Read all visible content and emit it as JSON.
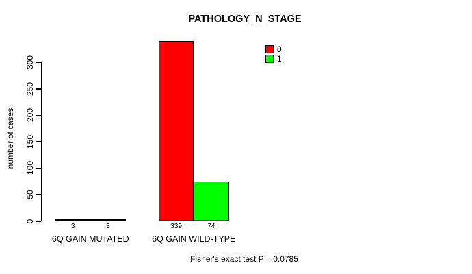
{
  "colors": {
    "background": "#FFFFFF",
    "axis": "#000000",
    "text": "#000000",
    "series0": "#FF0000",
    "series1": "#00FF00"
  },
  "chart_data": {
    "type": "bar",
    "title": "PATHOLOGY_N_STAGE",
    "xlabel": "",
    "ylabel": "number of cases",
    "categories": [
      "6Q GAIN MUTATED",
      "6Q GAIN WILD-TYPE"
    ],
    "series": [
      {
        "name": "0",
        "color": "#FF0000",
        "values": [
          3,
          339
        ]
      },
      {
        "name": "1",
        "color": "#00FF00",
        "values": [
          3,
          74
        ]
      }
    ],
    "bar_value_labels": [
      [
        3,
        339
      ],
      [
        3,
        74
      ]
    ],
    "yticks": [
      0,
      50,
      100,
      150,
      200,
      250,
      300
    ],
    "ylim": [
      0,
      339
    ],
    "grid": false,
    "legend_position": "top-right-inside",
    "annotation": "Fisher's exact test P = 0.0785"
  }
}
